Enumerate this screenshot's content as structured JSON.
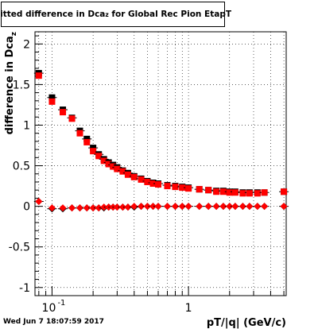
{
  "chart_data": {
    "type": "scatter",
    "title": "Fitted difference in Dca",
    "title_subscript": "z",
    "title_suffix": " for Global Rec Pion EtapT",
    "xlabel": "pT/|q| (GeV/c)",
    "ylabel": "difference in Dca",
    "ylabel_subscript": "z",
    "x_scale": "log",
    "xlim": [
      0.075,
      5.2
    ],
    "ylim": [
      -1.1,
      2.15
    ],
    "grid": true,
    "x_ticks": [
      {
        "value": 0.1,
        "label": "10",
        "exp": "-1"
      },
      {
        "value": 1,
        "label": "1",
        "exp": ""
      }
    ],
    "y_ticks": [
      {
        "value": -1,
        "label": "-1"
      },
      {
        "value": -0.5,
        "label": "-0.5"
      },
      {
        "value": 0,
        "label": "0"
      },
      {
        "value": 0.5,
        "label": "0.5"
      },
      {
        "value": 1,
        "label": "1"
      },
      {
        "value": 1.5,
        "label": "1.5"
      },
      {
        "value": 2,
        "label": "2"
      }
    ],
    "series": [
      {
        "marker": "square",
        "color_main": "#000000",
        "color_ref": "#ff0000",
        "x": [
          0.08,
          0.1,
          0.12,
          0.14,
          0.16,
          0.18,
          0.2,
          0.22,
          0.24,
          0.26,
          0.28,
          0.3,
          0.33,
          0.36,
          0.4,
          0.45,
          0.5,
          0.55,
          0.6,
          0.7,
          0.8,
          0.9,
          1.0,
          1.2,
          1.4,
          1.6,
          1.8,
          2.0,
          2.2,
          2.5,
          2.8,
          3.2,
          3.6,
          5.0
        ],
        "main": [
          1.64,
          1.34,
          1.19,
          1.09,
          0.93,
          0.83,
          0.72,
          0.64,
          0.58,
          0.54,
          0.51,
          0.48,
          0.44,
          0.41,
          0.37,
          0.34,
          0.31,
          0.29,
          0.28,
          0.26,
          0.25,
          0.24,
          0.23,
          0.21,
          0.2,
          0.19,
          0.19,
          0.18,
          0.18,
          0.17,
          0.17,
          0.17,
          0.17,
          0.18
        ],
        "ref": [
          1.61,
          1.29,
          1.16,
          1.08,
          0.9,
          0.79,
          0.68,
          0.62,
          0.56,
          0.52,
          0.49,
          0.46,
          0.43,
          0.39,
          0.36,
          0.33,
          0.3,
          0.28,
          0.27,
          0.25,
          0.24,
          0.23,
          0.22,
          0.21,
          0.2,
          0.18,
          0.18,
          0.17,
          0.17,
          0.16,
          0.16,
          0.16,
          0.17,
          0.18
        ]
      },
      {
        "marker": "diamond",
        "color_main": "#000000",
        "color_ref": "#ff0000",
        "x": [
          0.08,
          0.1,
          0.12,
          0.14,
          0.16,
          0.18,
          0.2,
          0.22,
          0.24,
          0.26,
          0.28,
          0.3,
          0.33,
          0.36,
          0.4,
          0.45,
          0.5,
          0.55,
          0.6,
          0.7,
          0.8,
          0.9,
          1.0,
          1.2,
          1.4,
          1.6,
          1.8,
          2.0,
          2.2,
          2.5,
          2.8,
          3.2,
          3.6,
          5.0
        ],
        "main": [
          0.06,
          -0.03,
          -0.03,
          -0.02,
          -0.02,
          -0.02,
          -0.02,
          -0.02,
          -0.02,
          -0.01,
          -0.01,
          -0.01,
          -0.01,
          -0.01,
          -0.01,
          0.0,
          0.0,
          0.0,
          0.0,
          0.0,
          0.0,
          0.0,
          0.0,
          0.0,
          0.0,
          0.0,
          0.0,
          0.0,
          0.0,
          0.0,
          0.0,
          0.0,
          0.0,
          0.0
        ],
        "ref": [
          0.06,
          -0.02,
          -0.02,
          -0.02,
          -0.02,
          -0.02,
          -0.02,
          -0.02,
          -0.01,
          -0.01,
          -0.01,
          -0.01,
          -0.01,
          -0.01,
          0.0,
          0.0,
          0.0,
          0.0,
          0.0,
          0.0,
          0.0,
          0.0,
          0.0,
          0.0,
          0.0,
          0.0,
          0.0,
          0.0,
          0.0,
          0.0,
          0.0,
          0.0,
          0.0,
          0.0
        ]
      }
    ]
  },
  "footer_text": "Wed Jun  7 18:07:59 2017"
}
